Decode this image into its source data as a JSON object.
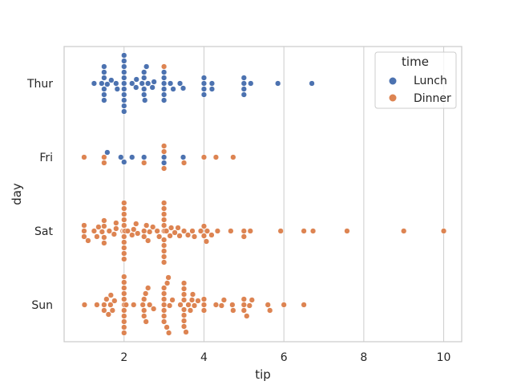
{
  "chart_data": {
    "type": "swarm",
    "xlabel": "tip",
    "ylabel": "day",
    "xlim": [
      0.5,
      10.45
    ],
    "xticks": [
      2,
      4,
      6,
      8,
      10
    ],
    "categories": [
      "Thur",
      "Fri",
      "Sat",
      "Sun"
    ],
    "grid": "x",
    "legend": {
      "title": "time",
      "placement": "top-right"
    },
    "series": [
      {
        "name": "Lunch",
        "color": "#4c72b0",
        "points": [
          {
            "day": "Thur",
            "values": [
              1.25,
              1.44,
              1.5,
              1.5,
              1.5,
              1.5,
              1.5,
              1.5,
              1.58,
              1.68,
              1.8,
              1.83,
              2.0,
              2.0,
              2.0,
              2.0,
              2.0,
              2.0,
              2.0,
              2.0,
              2.0,
              2.0,
              2.0,
              2.0,
              2.0,
              2.0,
              2.2,
              2.3,
              2.31,
              2.45,
              2.5,
              2.5,
              2.5,
              2.5,
              2.52,
              2.56,
              2.6,
              2.71,
              2.75,
              3.0,
              3.0,
              3.0,
              3.0,
              3.0,
              3.0,
              3.16,
              3.23,
              3.4,
              3.48,
              4.0,
              4.0,
              4.0,
              4.0,
              4.2,
              4.2,
              5.0,
              5.0,
              5.0,
              5.0,
              5.17,
              5.85,
              6.7
            ]
          },
          {
            "day": "Fri",
            "values": [
              1.58,
              1.92,
              2.0,
              2.2,
              2.5,
              3.0,
              3.0,
              3.48
            ]
          }
        ]
      },
      {
        "name": "Dinner",
        "color": "#dd8452",
        "points": [
          {
            "day": "Thur",
            "values": [
              3.0
            ]
          },
          {
            "day": "Fri",
            "values": [
              1.0,
              1.5,
              1.5,
              2.5,
              3.0,
              3.0,
              3.0,
              3.5,
              4.0,
              4.3,
              4.73
            ]
          },
          {
            "day": "Sat",
            "values": [
              1.0,
              1.0,
              1.0,
              1.1,
              1.25,
              1.32,
              1.36,
              1.45,
              1.5,
              1.5,
              1.5,
              1.5,
              1.63,
              1.75,
              1.8,
              1.8,
              1.97,
              2.0,
              2.0,
              2.0,
              2.0,
              2.0,
              2.0,
              2.0,
              2.0,
              2.0,
              2.0,
              2.0,
              2.0,
              2.0,
              2.01,
              2.03,
              2.09,
              2.2,
              2.24,
              2.3,
              2.34,
              2.5,
              2.5,
              2.56,
              2.6,
              2.64,
              2.72,
              2.83,
              2.88,
              3.0,
              3.0,
              3.0,
              3.0,
              3.0,
              3.0,
              3.0,
              3.0,
              3.0,
              3.0,
              3.0,
              3.0,
              3.02,
              3.06,
              3.15,
              3.18,
              3.27,
              3.35,
              3.39,
              3.5,
              3.6,
              3.71,
              3.76,
              3.92,
              4.0,
              4.0,
              4.06,
              4.08,
              4.19,
              4.34,
              4.67,
              5.0,
              5.0,
              5.16,
              5.92,
              6.5,
              6.73,
              7.58,
              9.0,
              10.0
            ]
          },
          {
            "day": "Sun",
            "values": [
              1.01,
              1.32,
              1.5,
              1.5,
              1.56,
              1.61,
              1.66,
              1.67,
              1.71,
              1.76,
              2.0,
              2.0,
              2.0,
              2.0,
              2.0,
              2.0,
              2.0,
              2.0,
              2.0,
              2.0,
              2.0,
              2.0,
              2.01,
              2.05,
              2.24,
              2.47,
              2.5,
              2.5,
              2.5,
              2.54,
              2.55,
              2.6,
              2.64,
              2.74,
              3.0,
              3.0,
              3.0,
              3.0,
              3.0,
              3.0,
              3.0,
              3.07,
              3.08,
              3.11,
              3.12,
              3.14,
              3.21,
              3.41,
              3.5,
              3.5,
              3.5,
              3.5,
              3.5,
              3.5,
              3.5,
              3.5,
              3.55,
              3.61,
              3.66,
              3.7,
              3.72,
              3.76,
              3.85,
              4.0,
              4.0,
              4.0,
              4.3,
              4.44,
              4.5,
              4.71,
              4.73,
              5.0,
              5.0,
              5.0,
              5.07,
              5.14,
              5.2,
              5.6,
              5.65,
              6.0,
              6.5
            ]
          }
        ]
      }
    ]
  }
}
